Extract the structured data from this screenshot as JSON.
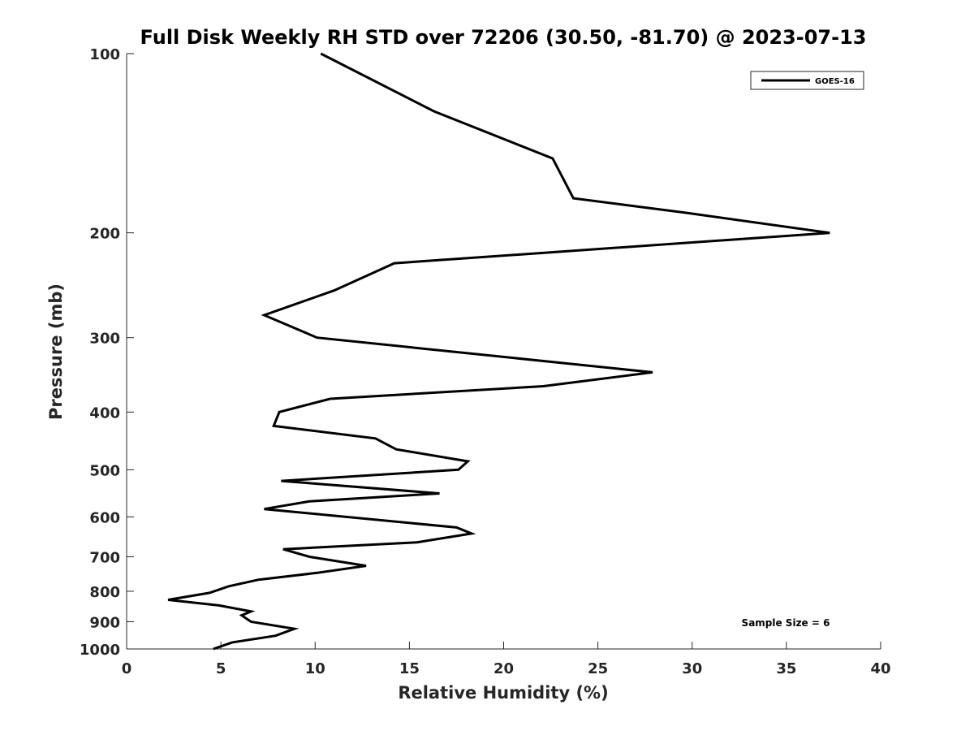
{
  "chart_data": {
    "type": "line",
    "title": "Full Disk Weekly RH STD over 72206 (30.50, -81.70) @ 2023-07-13",
    "xlabel": "Relative Humidity (%)",
    "ylabel": "Pressure (mb)",
    "xlim": [
      0,
      40
    ],
    "ylim": [
      100,
      1000
    ],
    "yscale": "log",
    "y_reversed": true,
    "grid": false,
    "legend_position": "top-right",
    "x_ticks": [
      0,
      5,
      10,
      15,
      20,
      25,
      30,
      35,
      40
    ],
    "y_ticks": [
      100,
      200,
      300,
      400,
      500,
      600,
      700,
      800,
      900,
      1000
    ],
    "annotation": "Sample Size = 6",
    "line_color": "#000000",
    "series": [
      {
        "name": "GOES-16",
        "x": [
          10.3,
          16.3,
          22.6,
          23.7,
          29.6,
          37.3,
          14.2,
          11.0,
          7.3,
          10.1,
          27.9,
          22.1,
          10.8,
          8.1,
          7.8,
          13.2,
          14.3,
          18.1,
          17.6,
          8.2,
          16.6,
          9.7,
          7.3,
          17.5,
          18.3,
          15.4,
          8.3,
          9.7,
          12.7,
          10.1,
          7.0,
          5.4,
          4.4,
          2.2,
          4.9,
          6.6,
          6.1,
          6.6,
          8.9,
          7.9,
          5.6,
          4.6
        ],
        "y": [
          100,
          125,
          150,
          175,
          185,
          200,
          225,
          250,
          275,
          300,
          343,
          362,
          380,
          400,
          422,
          443,
          462,
          484,
          500,
          522,
          548,
          565,
          582,
          625,
          640,
          662,
          680,
          700,
          725,
          745,
          765,
          785,
          805,
          827,
          845,
          865,
          878,
          900,
          925,
          950,
          975,
          1000
        ]
      }
    ]
  }
}
